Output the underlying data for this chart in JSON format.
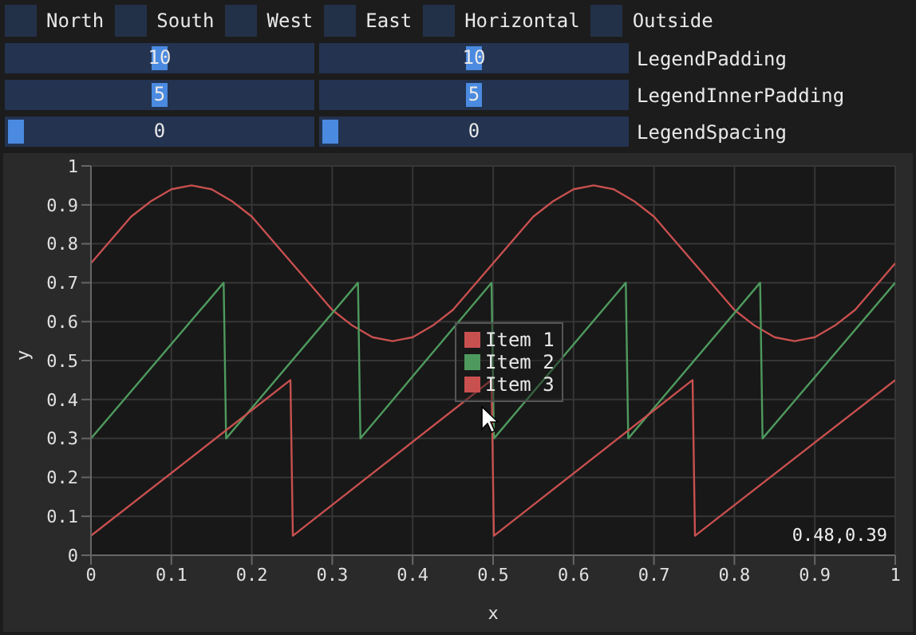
{
  "chart_data": [
    {
      "type": "other",
      "annotations": [
        "North",
        "South",
        "West",
        "East",
        "Horizontal",
        "Outside",
        "10",
        "10",
        "LegendPadding",
        "5",
        "5",
        "LegendInnerPadding",
        "0",
        "0",
        "LegendSpacing"
      ]
    },
    {
      "type": "line",
      "xlabel": "x",
      "ylabel": "y",
      "xlim": [
        0,
        1
      ],
      "ylim": [
        0,
        1
      ],
      "xticks": [
        0,
        0.1,
        0.2,
        0.3,
        0.4,
        0.5,
        0.6,
        0.7,
        0.8,
        0.9,
        1
      ],
      "yticks": [
        0,
        0.1,
        0.2,
        0.3,
        0.4,
        0.5,
        0.6,
        0.7,
        0.8,
        0.9,
        1
      ],
      "grid": true,
      "legend": "center",
      "annotations": [
        "0.48,0.39"
      ],
      "series": [
        {
          "name": "Item 1",
          "color": "#c8504f",
          "x": [
            0,
            0.025,
            0.05,
            0.075,
            0.1,
            0.125,
            0.15,
            0.175,
            0.2,
            0.225,
            0.25,
            0.275,
            0.3,
            0.325,
            0.35,
            0.375,
            0.4,
            0.425,
            0.45,
            0.475,
            0.5,
            0.525,
            0.55,
            0.575,
            0.6,
            0.625,
            0.65,
            0.675,
            0.7,
            0.725,
            0.75,
            0.775,
            0.8,
            0.825,
            0.85,
            0.875,
            0.9,
            0.925,
            0.95,
            0.975,
            1
          ],
          "values": [
            0.75,
            0.81,
            0.87,
            0.91,
            0.94,
            0.95,
            0.94,
            0.91,
            0.87,
            0.81,
            0.75,
            0.69,
            0.63,
            0.59,
            0.56,
            0.55,
            0.56,
            0.59,
            0.63,
            0.69,
            0.75,
            0.81,
            0.87,
            0.91,
            0.94,
            0.95,
            0.94,
            0.91,
            0.87,
            0.81,
            0.75,
            0.69,
            0.63,
            0.59,
            0.56,
            0.55,
            0.56,
            0.59,
            0.63,
            0.69,
            0.75
          ]
        },
        {
          "name": "Item 2",
          "color": "#4e9a5e",
          "x": [
            0,
            0.165,
            0.168,
            0.332,
            0.335,
            0.498,
            0.501,
            0.665,
            0.668,
            0.832,
            0.835,
            1
          ],
          "values": [
            0.3,
            0.7,
            0.3,
            0.7,
            0.3,
            0.7,
            0.3,
            0.7,
            0.3,
            0.7,
            0.3,
            0.7
          ]
        },
        {
          "name": "Item 3",
          "color": "#c8504f",
          "x": [
            0,
            0.248,
            0.251,
            0.498,
            0.501,
            0.748,
            0.751,
            1
          ],
          "values": [
            0.05,
            0.45,
            0.05,
            0.45,
            0.05,
            0.45,
            0.05,
            0.45
          ]
        }
      ]
    }
  ]
}
